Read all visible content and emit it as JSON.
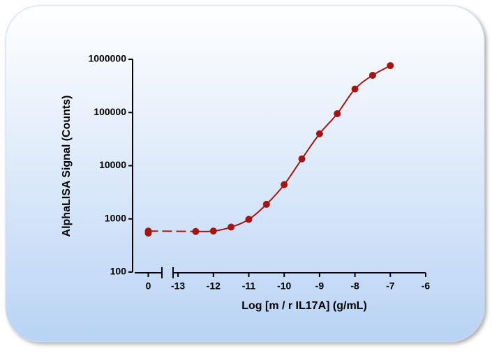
{
  "chart_data": {
    "type": "scatter",
    "xlabel": "Log [m / r IL17A] (g/mL)",
    "ylabel": "AlphaLISA Signal (Counts)",
    "log_y": true,
    "ylim": [
      100,
      1000000
    ],
    "yticks": [
      100,
      1000,
      10000,
      100000,
      1000000
    ],
    "x_axes": [
      {
        "xlim": [
          -0.45,
          0.45
        ],
        "xticks": [
          0
        ]
      },
      {
        "xlim": [
          -13.14,
          -6
        ],
        "xticks": [
          -13,
          -12,
          -11,
          -10,
          -9,
          -8,
          -7,
          -6
        ]
      }
    ],
    "series": [
      {
        "color": "#a31515",
        "x_axis": 0,
        "x": [
          0,
          0
        ],
        "values": [
          590,
          540
        ]
      },
      {
        "color": "#a31515",
        "x_axis": 1,
        "x": [
          -12.5,
          -12,
          -11.5,
          -11,
          -10.5,
          -10,
          -9.5,
          -9,
          -8.5,
          -8,
          -7.5,
          -7
        ],
        "values": [
          580,
          590,
          700,
          980,
          1880,
          4400,
          13400,
          39800,
          95000,
          276000,
          500000,
          760000
        ]
      }
    ]
  }
}
